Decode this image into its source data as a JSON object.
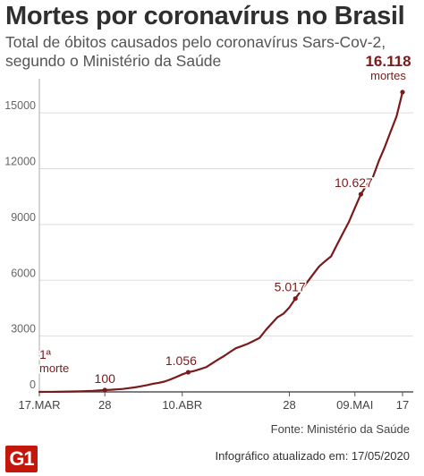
{
  "header": {
    "title": "Mortes por coronavírus no Brasil",
    "subtitle": "Total de óbitos causados pelo coronavírus Sars-Cov-2, segundo o Ministério da Saúde"
  },
  "footer": {
    "source": "Fonte: Ministério da Saúde",
    "logo_text": "G1",
    "updated": "Infográfico atualizado em: 17/05/2020"
  },
  "colors": {
    "line": "#7b1a1a",
    "accent_text": "#7b1a1a",
    "axis": "#555555",
    "grid": "#dddddd",
    "logo": "#c4170c"
  },
  "chart_data": {
    "type": "line",
    "grid": true,
    "ylim": [
      0,
      16500
    ],
    "y_ticks": [
      0,
      3000,
      6000,
      9000,
      12000,
      15000
    ],
    "y_tick_labels": [
      "0",
      "3000",
      "6000",
      "9000",
      "12000",
      "15000"
    ],
    "x_ticks": [
      {
        "day": 0,
        "label": "17.MAR"
      },
      {
        "day": 11,
        "label": "28"
      },
      {
        "day": 24,
        "label": "10.ABR"
      },
      {
        "day": 42,
        "label": "28"
      },
      {
        "day": 53,
        "label": "09.MAI"
      },
      {
        "day": 61,
        "label": "17"
      }
    ],
    "series": [
      {
        "x": [
          0,
          1,
          2,
          3,
          4,
          5,
          6,
          7,
          8,
          9,
          10,
          11,
          12,
          13,
          14,
          15,
          16,
          17,
          18,
          19,
          20,
          21,
          22,
          23,
          24,
          25,
          26,
          27,
          28,
          29,
          30,
          31,
          32,
          33,
          34,
          35,
          36,
          37,
          38,
          39,
          40,
          41,
          42,
          43,
          44,
          45,
          46,
          47,
          48,
          49,
          50,
          51,
          52,
          53,
          54,
          55,
          56,
          57,
          58,
          59,
          60,
          61
        ],
        "values": [
          1,
          3,
          4,
          7,
          11,
          18,
          25,
          34,
          46,
          57,
          77,
          100,
          114,
          136,
          159,
          201,
          240,
          299,
          359,
          432,
          486,
          553,
          667,
          800,
          941,
          1056,
          1124,
          1223,
          1328,
          1532,
          1736,
          1924,
          2141,
          2347,
          2462,
          2587,
          2741,
          2906,
          3313,
          3670,
          4016,
          4205,
          4543,
          5017,
          5466,
          5901,
          6329,
          6750,
          7025,
          7288,
          7921,
          8536,
          9146,
          9897,
          10627,
          11123,
          11519,
          12400,
          13149,
          13993,
          14817,
          16118
        ]
      }
    ],
    "annotations": [
      {
        "day": 0,
        "value": 1,
        "lines": [
          "1ª",
          "morte"
        ]
      },
      {
        "day": 11,
        "value": 100,
        "lines": [
          "100"
        ]
      },
      {
        "day": 25,
        "value": 1056,
        "lines": [
          "1.056"
        ]
      },
      {
        "day": 43,
        "value": 5017,
        "lines": [
          "5.017"
        ]
      },
      {
        "day": 54,
        "value": 10627,
        "lines": [
          "10.627"
        ]
      },
      {
        "day": 61,
        "value": 16118,
        "lines": [
          "16.118",
          "mortes"
        ]
      }
    ]
  }
}
